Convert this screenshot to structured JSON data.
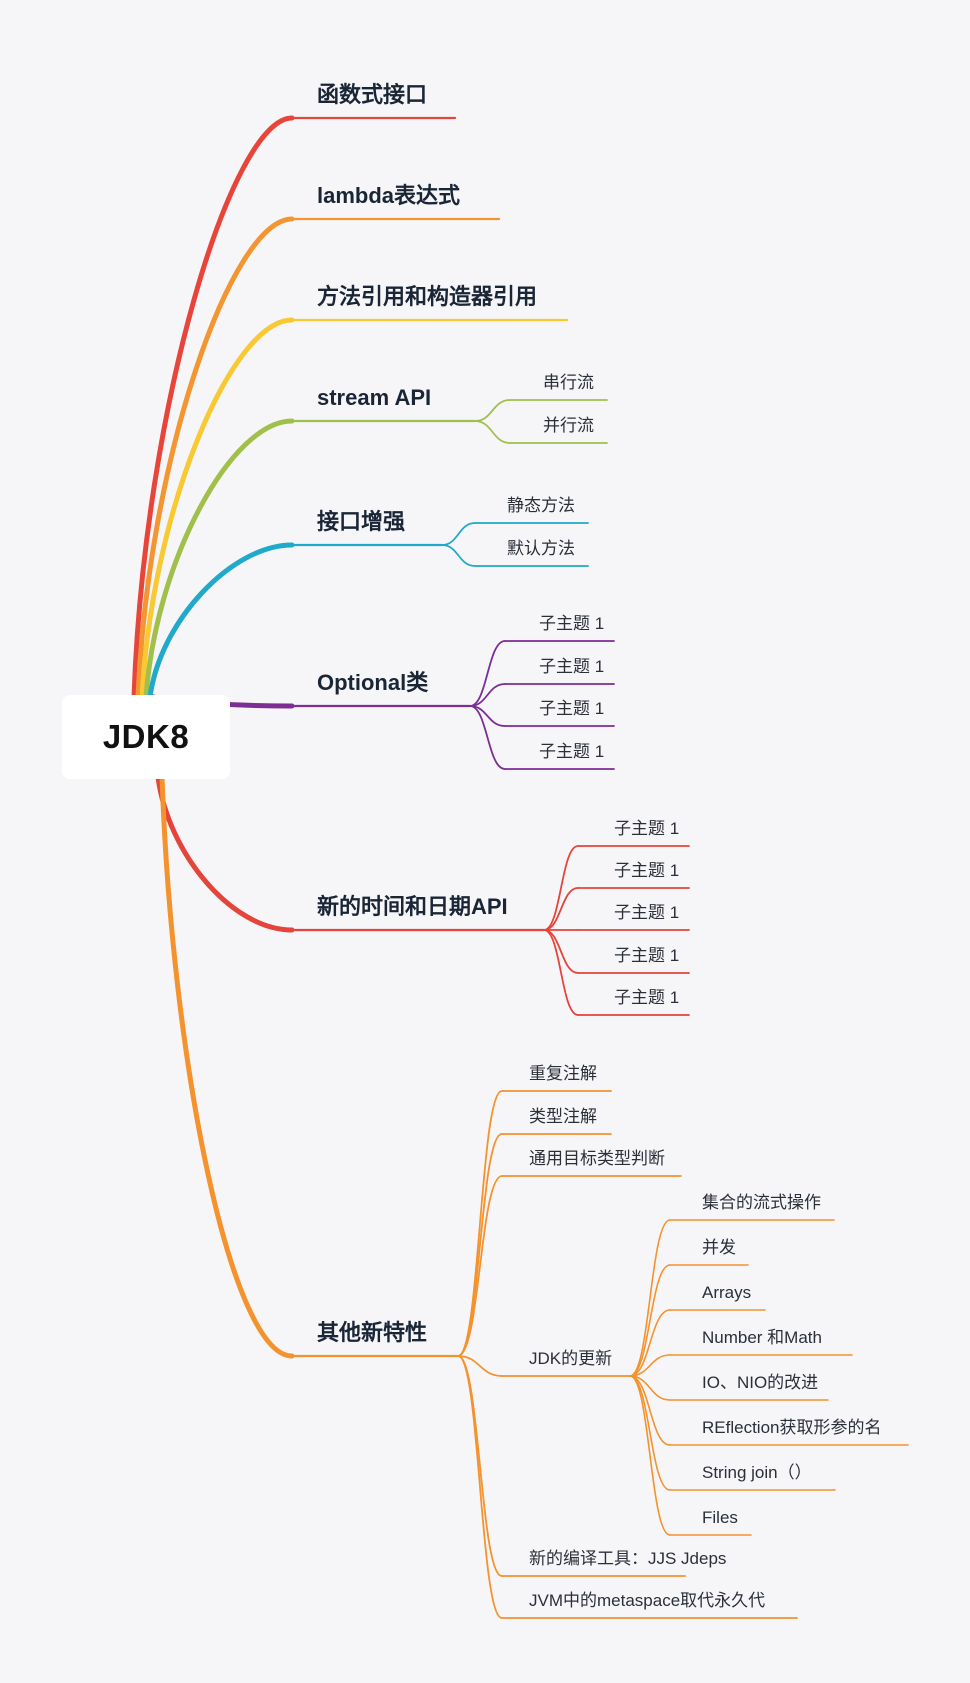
{
  "root": {
    "label": "JDK8"
  },
  "colors": {
    "red": "#e8453a",
    "orange": "#f39531",
    "yellow": "#f9c933",
    "green": "#a0c04b",
    "teal": "#20a9c9",
    "purple": "#7c2e95",
    "red2": "#e5443a",
    "orange2": "#f4922e"
  },
  "branches": [
    {
      "label": "函数式接口",
      "color": "#e8453a",
      "children": []
    },
    {
      "label": "lambda表达式",
      "color": "#f39531",
      "children": []
    },
    {
      "label": "方法引用和构造器引用",
      "color": "#f9c933",
      "children": []
    },
    {
      "label": "stream API",
      "color": "#a0c04b",
      "children": [
        {
          "label": "串行流"
        },
        {
          "label": "并行流"
        }
      ]
    },
    {
      "label": "接口增强",
      "color": "#20a9c9",
      "children": [
        {
          "label": "静态方法"
        },
        {
          "label": "默认方法"
        }
      ]
    },
    {
      "label": "Optional类",
      "color": "#7c2e95",
      "children": [
        {
          "label": "子主题 1"
        },
        {
          "label": "子主题 1"
        },
        {
          "label": "子主题 1"
        },
        {
          "label": "子主题 1"
        }
      ]
    },
    {
      "label": "新的时间和日期API",
      "color": "#e5443a",
      "children": [
        {
          "label": "子主题 1"
        },
        {
          "label": "子主题 1"
        },
        {
          "label": "子主题 1"
        },
        {
          "label": "子主题 1"
        },
        {
          "label": "子主题 1"
        }
      ]
    },
    {
      "label": "其他新特性",
      "color": "#f4922e",
      "children": [
        {
          "label": "重复注解"
        },
        {
          "label": "类型注解"
        },
        {
          "label": "通用目标类型判断"
        },
        {
          "label": "JDK的更新",
          "children": [
            {
              "label": "集合的流式操作"
            },
            {
              "label": "并发"
            },
            {
              "label": "Arrays"
            },
            {
              "label": "Number 和Math"
            },
            {
              "label": "IO、NIO的改进"
            },
            {
              "label": "REflection获取形参的名"
            },
            {
              "label": "String join（）"
            },
            {
              "label": "Files"
            }
          ]
        },
        {
          "label": "新的编译工具：JJS Jdeps"
        },
        {
          "label": "JVM中的metaspace取代永久代"
        }
      ]
    }
  ]
}
